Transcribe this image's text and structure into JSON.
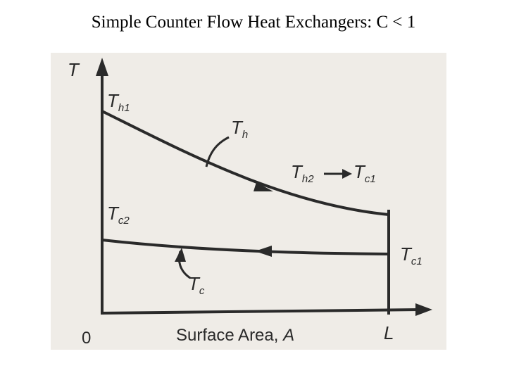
{
  "title": "Simple Counter Flow Heat Exchangers: C < 1",
  "axes": {
    "y_label": "T",
    "x_label": "Surface Area, ",
    "x_var": "A",
    "origin": "0",
    "end": "L"
  },
  "labels": {
    "th1": {
      "main": "T",
      "sub": "h1"
    },
    "th": {
      "main": "T",
      "sub": "h"
    },
    "th2": {
      "main": "T",
      "sub": "h2"
    },
    "tc1_top": {
      "main": "T",
      "sub": "c1"
    },
    "tc2": {
      "main": "T",
      "sub": "c2"
    },
    "tc1": {
      "main": "T",
      "sub": "c1"
    },
    "tc": {
      "main": "T",
      "sub": "c"
    }
  }
}
